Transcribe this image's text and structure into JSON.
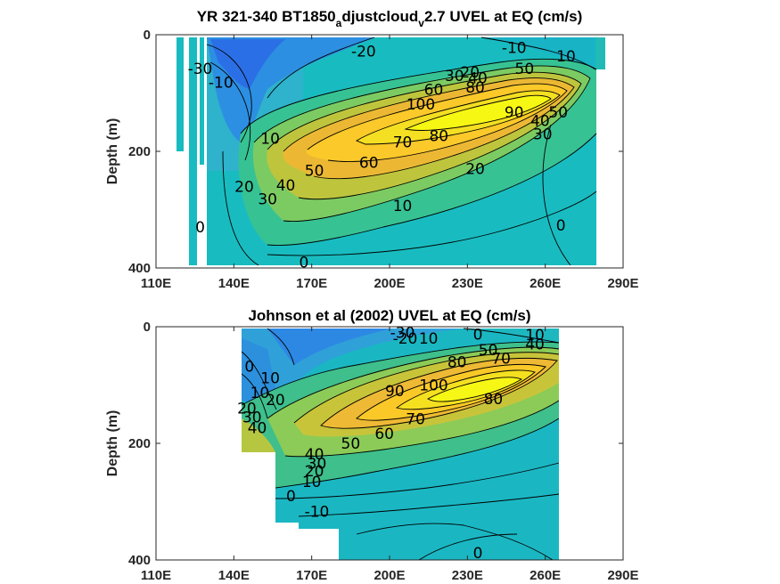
{
  "chart_data": [
    {
      "type": "heatmap",
      "subtype": "filled-contour",
      "title": "YR 321-340 BT1850_adjustcloud_v2.7 UVEL at EQ (cm/s)",
      "title_parts": {
        "pre": "YR 321-340 BT1850",
        "sub1": "a",
        "mid": "djustcloud",
        "sub2": "v",
        "post": "2.7 UVEL at EQ (cm/s)"
      },
      "xlabel": "",
      "ylabel": "Depth (m)",
      "xlim": [
        110,
        290
      ],
      "ylim": [
        0,
        400
      ],
      "y_reversed": true,
      "x_ticks": [
        "110E",
        "140E",
        "170E",
        "200E",
        "230E",
        "260E",
        "290E"
      ],
      "x_tick_values": [
        110,
        140,
        170,
        200,
        230,
        260,
        290
      ],
      "y_ticks": [
        "0",
        "200",
        "400"
      ],
      "y_tick_values": [
        0,
        200,
        400
      ],
      "colormap": "parula",
      "core": {
        "lon": 235,
        "depth": 125,
        "max": 100
      },
      "contour_labels": [
        {
          "text": "-20",
          "lon": 190,
          "depth": 28
        },
        {
          "text": "-10",
          "lon": 248,
          "depth": 22
        },
        {
          "text": "10",
          "lon": 268,
          "depth": 37
        },
        {
          "text": "-30",
          "lon": 127,
          "depth": 58
        },
        {
          "text": "-10",
          "lon": 135,
          "depth": 82
        },
        {
          "text": "30",
          "lon": 225,
          "depth": 70
        },
        {
          "text": "20",
          "lon": 231,
          "depth": 64
        },
        {
          "text": "50",
          "lon": 252,
          "depth": 58
        },
        {
          "text": "60",
          "lon": 217,
          "depth": 94
        },
        {
          "text": "40",
          "lon": 234,
          "depth": 74
        },
        {
          "text": "80",
          "lon": 233,
          "depth": 90
        },
        {
          "text": "100",
          "lon": 212,
          "depth": 119
        },
        {
          "text": "90",
          "lon": 248,
          "depth": 133
        },
        {
          "text": "40",
          "lon": 258,
          "depth": 147
        },
        {
          "text": "50",
          "lon": 265,
          "depth": 133
        },
        {
          "text": "10",
          "lon": 154,
          "depth": 178
        },
        {
          "text": "70",
          "lon": 205,
          "depth": 184
        },
        {
          "text": "80",
          "lon": 219,
          "depth": 173
        },
        {
          "text": "30",
          "lon": 259,
          "depth": 170
        },
        {
          "text": "60",
          "lon": 192,
          "depth": 219
        },
        {
          "text": "50",
          "lon": 171,
          "depth": 233
        },
        {
          "text": "20",
          "lon": 233,
          "depth": 230
        },
        {
          "text": "40",
          "lon": 160,
          "depth": 258
        },
        {
          "text": "20",
          "lon": 144,
          "depth": 260
        },
        {
          "text": "30",
          "lon": 153,
          "depth": 282
        },
        {
          "text": "10",
          "lon": 205,
          "depth": 293
        },
        {
          "text": "0",
          "lon": 127,
          "depth": 330
        },
        {
          "text": "0",
          "lon": 266,
          "depth": 327
        },
        {
          "text": "0",
          "lon": 167,
          "depth": 390
        }
      ]
    },
    {
      "type": "heatmap",
      "subtype": "filled-contour",
      "title": "Johnson et al (2002) UVEL at EQ (cm/s)",
      "xlabel": "",
      "ylabel": "Depth (m)",
      "xlim": [
        110,
        290
      ],
      "ylim": [
        0,
        400
      ],
      "y_reversed": true,
      "x_ticks": [
        "110E",
        "140E",
        "170E",
        "200E",
        "230E",
        "260E",
        "290E"
      ],
      "x_tick_values": [
        110,
        140,
        170,
        200,
        230,
        260,
        290
      ],
      "y_ticks": [
        "0",
        "200",
        "400"
      ],
      "y_tick_values": [
        0,
        200,
        400
      ],
      "colormap": "parula",
      "core": {
        "lon": 230,
        "depth": 105,
        "max": 100
      },
      "contour_labels": [
        {
          "text": "-30",
          "lon": 205,
          "depth": 10
        },
        {
          "text": "-20",
          "lon": 206,
          "depth": 20
        },
        {
          "text": "10",
          "lon": 215,
          "depth": 20
        },
        {
          "text": "0",
          "lon": 234,
          "depth": 13
        },
        {
          "text": "10",
          "lon": 256,
          "depth": 14
        },
        {
          "text": "50",
          "lon": 238,
          "depth": 40
        },
        {
          "text": "40",
          "lon": 256,
          "depth": 30
        },
        {
          "text": "70",
          "lon": 243,
          "depth": 54
        },
        {
          "text": "80",
          "lon": 226,
          "depth": 60
        },
        {
          "text": "0",
          "lon": 146,
          "depth": 68
        },
        {
          "text": "10",
          "lon": 154,
          "depth": 88
        },
        {
          "text": "100",
          "lon": 217,
          "depth": 100
        },
        {
          "text": "10",
          "lon": 150,
          "depth": 113
        },
        {
          "text": "90",
          "lon": 202,
          "depth": 110
        },
        {
          "text": "20",
          "lon": 156,
          "depth": 125
        },
        {
          "text": "80",
          "lon": 240,
          "depth": 124
        },
        {
          "text": "20",
          "lon": 145,
          "depth": 140
        },
        {
          "text": "30",
          "lon": 147,
          "depth": 155
        },
        {
          "text": "40",
          "lon": 149,
          "depth": 173
        },
        {
          "text": "70",
          "lon": 210,
          "depth": 158
        },
        {
          "text": "60",
          "lon": 198,
          "depth": 183
        },
        {
          "text": "50",
          "lon": 185,
          "depth": 200
        },
        {
          "text": "40",
          "lon": 171,
          "depth": 218
        },
        {
          "text": "30",
          "lon": 172,
          "depth": 234
        },
        {
          "text": "20",
          "lon": 171,
          "depth": 247
        },
        {
          "text": "10",
          "lon": 170,
          "depth": 266
        },
        {
          "text": "0",
          "lon": 162,
          "depth": 290
        },
        {
          "text": "-10",
          "lon": 172,
          "depth": 317
        },
        {
          "text": "0",
          "lon": 234,
          "depth": 388
        }
      ]
    }
  ]
}
